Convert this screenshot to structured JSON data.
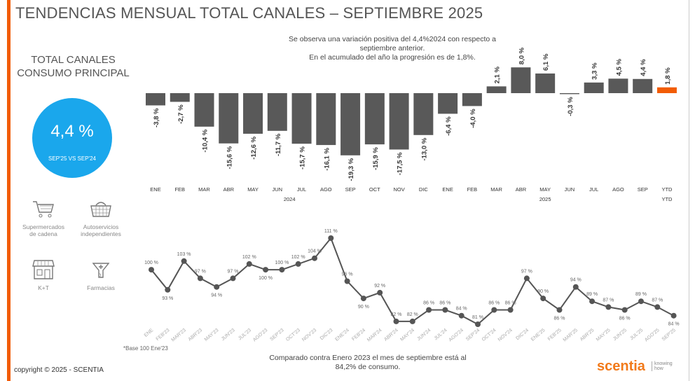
{
  "title": "TENDENCIAS MENSUAL TOTAL CANALES – SEPTIEMBRE 2025",
  "note_lines": [
    "Se observa una variación positiva del 4,4%2024 con respecto a",
    "septiembre anterior.",
    "En el acumulado del año la progresión es de 1,8%."
  ],
  "panel": {
    "title_lines": [
      "TOTAL CANALES",
      "CONSUMO PRINCIPAL"
    ],
    "kpi_value": "4,4 %",
    "kpi_caption": "SEP'25 VS SEP'24",
    "kpi_color": "#1aa7ec",
    "channels": [
      {
        "icon": "shopping-cart-icon",
        "label_lines": [
          "Supermercados",
          "de cadena"
        ]
      },
      {
        "icon": "shopping-basket-icon",
        "label_lines": [
          "Autoservicios",
          "independientes"
        ]
      },
      {
        "icon": "storefront-icon",
        "label_lines": [
          "K+T"
        ]
      },
      {
        "icon": "pharmacy-icon",
        "label_lines": [
          "Farmacias"
        ]
      }
    ]
  },
  "chart_data": [
    {
      "type": "bar",
      "categories": [
        "ENE",
        "FEB",
        "MAR",
        "ABR",
        "MAY",
        "JUN",
        "JUL",
        "AGO",
        "SEP",
        "OCT",
        "NOV",
        "DIC",
        "ENE",
        "FEB",
        "MAR",
        "ABR",
        "MAY",
        "JUN",
        "JUL",
        "AGO",
        "SEP",
        "YTD"
      ],
      "group_labels": [
        {
          "label": "2024",
          "from": 0,
          "to": 11
        },
        {
          "label": "2025",
          "from": 12,
          "to": 20
        },
        {
          "label": "YTD",
          "from": 21,
          "to": 21
        }
      ],
      "values": [
        -3.8,
        -2.7,
        -10.4,
        -15.6,
        -12.6,
        -11.7,
        -15.7,
        -16.1,
        -19.3,
        -15.9,
        -17.5,
        -13.0,
        -6.4,
        -4.0,
        2.1,
        8.0,
        6.1,
        -0.3,
        3.3,
        4.5,
        4.4,
        1.8
      ],
      "data_labels": [
        "-3,8 %",
        "-2,7 %",
        "-10,4 %",
        "-15,6 %",
        "-12,6 %",
        "-11,7 %",
        "-15,7 %",
        "-16,1 %",
        "-19,3 %",
        "-15,9 %",
        "-17,5 %",
        "-13,0 %",
        "-6,4 %",
        "-4,0 %",
        "2,1 %",
        "8,0 %",
        "6,1 %",
        "-0,3 %",
        "3,3 %",
        "4,5 %",
        "4,4 %",
        "1,8 %"
      ],
      "unit": "%",
      "colors": {
        "bar": "#595959",
        "highlight": "#f25c05"
      },
      "grid": false
    },
    {
      "type": "line",
      "categories": [
        "ENE",
        "FEB'23",
        "MAR'23",
        "ABR'23",
        "MAY'23",
        "JUN'23",
        "JUL'23",
        "AGO'23",
        "SEP'23",
        "OCT'23",
        "NOV'23",
        "DIC'23",
        "ENE'24",
        "FEB'24",
        "MAR'24",
        "ABR'24",
        "MAY'24",
        "JUN'24",
        "JUL'24",
        "AGO'24",
        "SEP'24",
        "OCT'24",
        "NOV'24",
        "DIC'24",
        "ENE'25",
        "FEB'25",
        "MAR'25",
        "ABR'25",
        "MAY'25",
        "JUN'25",
        "JUL'25",
        "AGO'25",
        "SEP'25"
      ],
      "values": [
        100,
        93,
        103,
        97,
        94,
        97,
        102,
        100,
        100,
        102,
        104,
        111,
        96,
        90,
        92,
        82,
        82,
        86,
        86,
        84,
        81,
        86,
        86,
        97,
        90,
        86,
        94,
        89,
        87,
        86,
        89,
        87,
        84
      ],
      "unit": "%",
      "ylim": [
        81,
        111
      ],
      "color": "#555555",
      "grid": false
    }
  ],
  "base_note": "*Base 100 Ene'23",
  "bottom_note_lines": [
    "Comparado contra Enero 2023 el mes de septiembre está al",
    "84,2% de consumo."
  ],
  "copyright": "copyright © 2025 - SCENTIA",
  "logo": {
    "name": "scentia",
    "tagline": "knowing how",
    "color": "#f27a1a"
  }
}
